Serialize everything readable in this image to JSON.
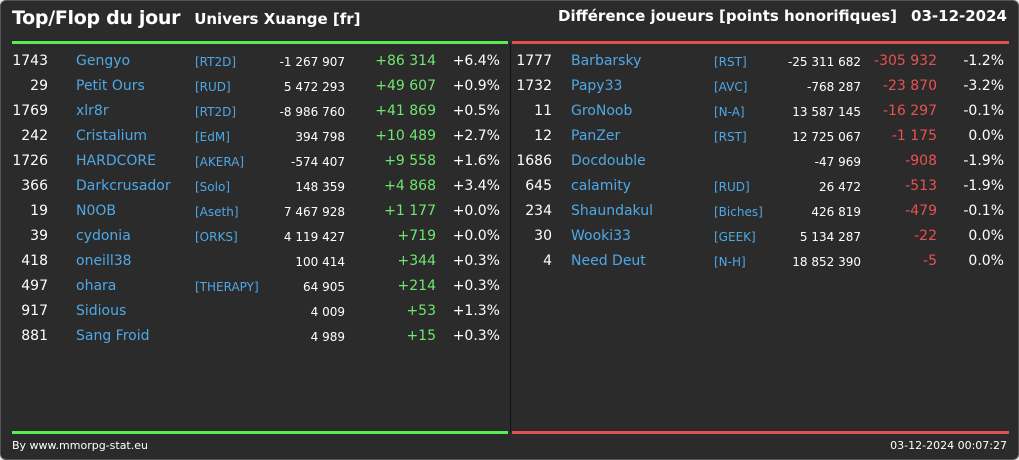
{
  "header": {
    "title": "Top/Flop du jour",
    "subtitle": "Univers Xuange [fr]",
    "metric": "Différence joueurs [points honorifiques]",
    "date": "03-12-2024"
  },
  "colors": {
    "up": "#6ee86e",
    "down": "#ec5050",
    "link": "#4fa8e6"
  },
  "top": [
    {
      "rank": "1743",
      "name": "Gengyo",
      "alliance": "[RT2D]",
      "points": "-1 267 907",
      "diff": "+86 314",
      "pct": "+6.4%"
    },
    {
      "rank": "29",
      "name": "Petit Ours",
      "alliance": "[RUD]",
      "points": "5 472 293",
      "diff": "+49 607",
      "pct": "+0.9%"
    },
    {
      "rank": "1769",
      "name": "xlr8r",
      "alliance": "[RT2D]",
      "points": "-8 986 760",
      "diff": "+41 869",
      "pct": "+0.5%"
    },
    {
      "rank": "242",
      "name": "Cristalium",
      "alliance": "[EdM]",
      "points": "394 798",
      "diff": "+10 489",
      "pct": "+2.7%"
    },
    {
      "rank": "1726",
      "name": "HARDCORE",
      "alliance": "[AKERA]",
      "points": "-574 407",
      "diff": "+9 558",
      "pct": "+1.6%"
    },
    {
      "rank": "366",
      "name": "Darkcrusador",
      "alliance": "[Solo]",
      "points": "148 359",
      "diff": "+4 868",
      "pct": "+3.4%"
    },
    {
      "rank": "19",
      "name": "N0OB",
      "alliance": "[Aseth]",
      "points": "7 467 928",
      "diff": "+1 177",
      "pct": "+0.0%"
    },
    {
      "rank": "39",
      "name": "cydonia",
      "alliance": "[ORKS]",
      "points": "4 119 427",
      "diff": "+719",
      "pct": "+0.0%"
    },
    {
      "rank": "418",
      "name": "oneill38",
      "alliance": "",
      "points": "100 414",
      "diff": "+344",
      "pct": "+0.3%"
    },
    {
      "rank": "497",
      "name": "ohara",
      "alliance": "[THERAPY]",
      "points": "64 905",
      "diff": "+214",
      "pct": "+0.3%"
    },
    {
      "rank": "917",
      "name": "Sidious",
      "alliance": "",
      "points": "4 009",
      "diff": "+53",
      "pct": "+1.3%"
    },
    {
      "rank": "881",
      "name": "Sang Froid",
      "alliance": "",
      "points": "4 989",
      "diff": "+15",
      "pct": "+0.3%"
    }
  ],
  "flop": [
    {
      "rank": "1777",
      "name": "Barbarsky",
      "alliance": "[RST]",
      "points": "-25 311 682",
      "diff": "-305 932",
      "pct": "-1.2%"
    },
    {
      "rank": "1732",
      "name": "Papy33",
      "alliance": "[AVC]",
      "points": "-768 287",
      "diff": "-23 870",
      "pct": "-3.2%"
    },
    {
      "rank": "11",
      "name": "GroNoob",
      "alliance": "[N-A]",
      "points": "13 587 145",
      "diff": "-16 297",
      "pct": "-0.1%"
    },
    {
      "rank": "12",
      "name": "PanZer",
      "alliance": "[RST]",
      "points": "12 725 067",
      "diff": "-1 175",
      "pct": "0.0%"
    },
    {
      "rank": "1686",
      "name": "Docdouble",
      "alliance": "",
      "points": "-47 969",
      "diff": "-908",
      "pct": "-1.9%"
    },
    {
      "rank": "645",
      "name": "calamity",
      "alliance": "[RUD]",
      "points": "26 472",
      "diff": "-513",
      "pct": "-1.9%"
    },
    {
      "rank": "234",
      "name": "Shaundakul",
      "alliance": "[Biches]",
      "points": "426 819",
      "diff": "-479",
      "pct": "-0.1%"
    },
    {
      "rank": "30",
      "name": "Wooki33",
      "alliance": "[GEEK]",
      "points": "5 134 287",
      "diff": "-22",
      "pct": "0.0%"
    },
    {
      "rank": "4",
      "name": "Need Deut",
      "alliance": "[N-H]",
      "points": "18 852 390",
      "diff": "-5",
      "pct": "0.0%"
    }
  ],
  "footer": {
    "credit": "By www.mmorpg-stat.eu",
    "timestamp": "03-12-2024 00:07:27"
  }
}
